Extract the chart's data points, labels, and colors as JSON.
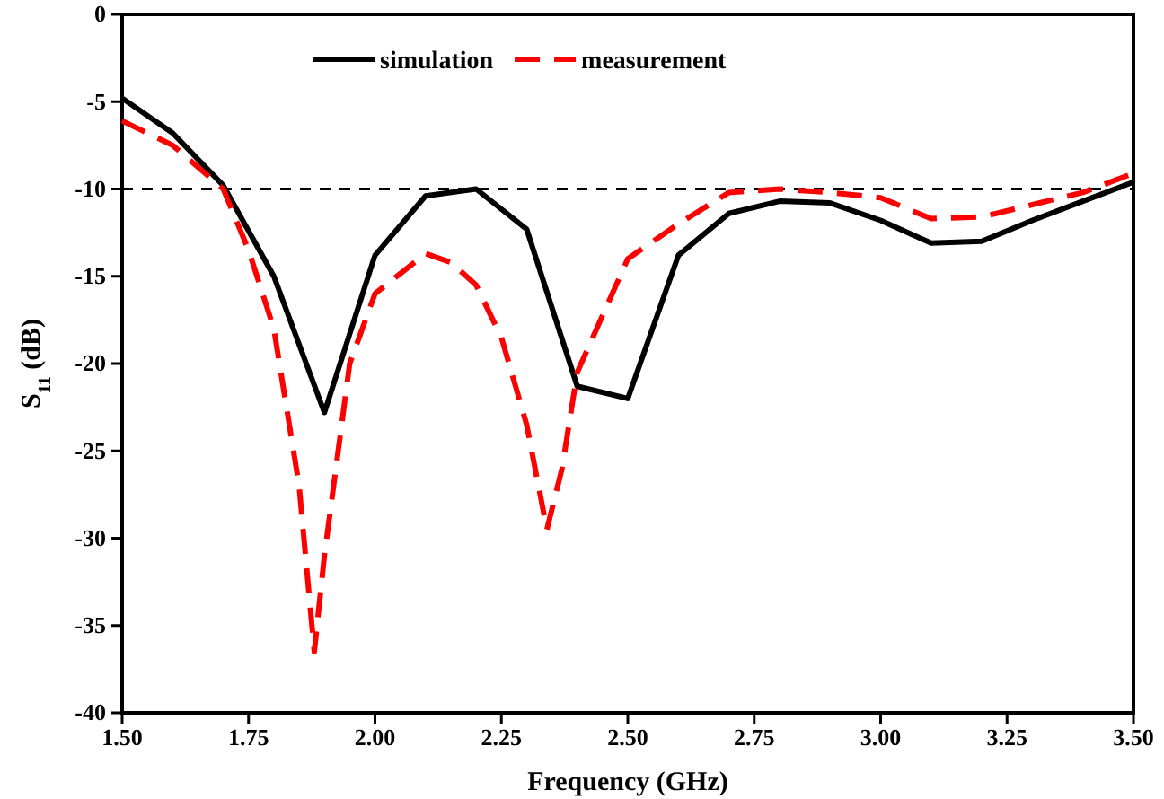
{
  "chart_data": {
    "type": "line",
    "xlabel": "Frequency (GHz)",
    "ylabel": "S$_{11}$ (dB)",
    "xlim": [
      1.5,
      3.5
    ],
    "ylim": [
      -40,
      0
    ],
    "xticks": [
      {
        "value": 1.5,
        "label": "1.50"
      },
      {
        "value": 1.75,
        "label": "1.75"
      },
      {
        "value": 2,
        "label": "2.00"
      },
      {
        "value": 2.25,
        "label": "2.25"
      },
      {
        "value": 2.5,
        "label": "2.50"
      },
      {
        "value": 2.75,
        "label": "2.75"
      },
      {
        "value": 3,
        "label": "3.00"
      },
      {
        "value": 3.25,
        "label": "3.25"
      },
      {
        "value": 3.5,
        "label": "3.50"
      }
    ],
    "yticks": [
      -40,
      -35,
      -30,
      -25,
      -20,
      -15,
      -10,
      -5,
      0
    ],
    "legend": "top",
    "grid": false,
    "ref_lines": [
      {
        "axis": "y",
        "value": -10,
        "color": "#000000",
        "line_style": "dashed"
      }
    ],
    "series": [
      {
        "name": "simulation",
        "color": "#000000",
        "line_style": "solid",
        "x": [
          1.5,
          1.6,
          1.7,
          1.8,
          1.9,
          2.0,
          2.1,
          2.2,
          2.3,
          2.4,
          2.5,
          2.6,
          2.7,
          2.8,
          2.9,
          3.0,
          3.1,
          3.2,
          3.3,
          3.4,
          3.5
        ],
        "values": [
          -4.8,
          -6.8,
          -9.8,
          -15,
          -22.8,
          -13.8,
          -10.4,
          -10,
          -12.3,
          -21.3,
          -22,
          -13.8,
          -11.4,
          -10.7,
          -10.8,
          -11.8,
          -13.1,
          -13,
          -11.8,
          -10.7,
          -9.6
        ]
      },
      {
        "name": "measurement",
        "color": "#ff0000",
        "line_style": "dashed",
        "x": [
          1.5,
          1.6,
          1.7,
          1.75,
          1.8,
          1.85,
          1.88,
          1.9,
          1.95,
          2.0,
          2.1,
          2.15,
          2.2,
          2.25,
          2.3,
          2.34,
          2.37,
          2.4,
          2.5,
          2.6,
          2.7,
          2.8,
          2.9,
          3.0,
          3.1,
          3.2,
          3.3,
          3.4,
          3.5
        ],
        "values": [
          -6.1,
          -7.5,
          -10,
          -13.5,
          -18,
          -27,
          -36.5,
          -31,
          -20,
          -16,
          -13.7,
          -14.2,
          -15.5,
          -18.5,
          -23.5,
          -29.5,
          -26,
          -20.5,
          -14,
          -12,
          -10.2,
          -10,
          -10.2,
          -10.5,
          -11.7,
          -11.6,
          -10.9,
          -10.2,
          -9.1
        ]
      }
    ]
  }
}
